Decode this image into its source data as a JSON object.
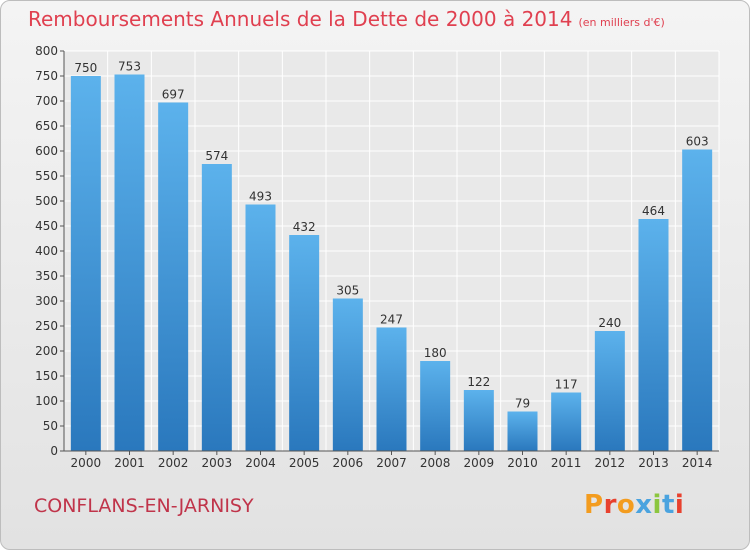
{
  "chart_data": {
    "type": "bar",
    "title": "Remboursements Annuels de la Dette de 2000 à 2014",
    "subtitle": "(en milliers d'€)",
    "categories": [
      "2000",
      "2001",
      "2002",
      "2003",
      "2004",
      "2005",
      "2006",
      "2007",
      "2008",
      "2009",
      "2010",
      "2011",
      "2012",
      "2013",
      "2014"
    ],
    "values": [
      750,
      753,
      697,
      574,
      493,
      432,
      305,
      247,
      180,
      122,
      79,
      117,
      240,
      464,
      603
    ],
    "ylim": [
      0,
      800
    ],
    "yticks": [
      0,
      50,
      100,
      150,
      200,
      250,
      300,
      350,
      400,
      450,
      500,
      550,
      600,
      650,
      700,
      750,
      800
    ],
    "grid": true,
    "data_labels": true,
    "bar_color": "#3a8fd6"
  },
  "footer": {
    "commune": "CONFLANS-EN-JARNISY",
    "brand": "Proxiti",
    "brand_colors": [
      "#f39c1f",
      "#e8412e",
      "#f39c1f",
      "#4aa3df",
      "#8cc63f",
      "#4aa3df",
      "#e8412e"
    ]
  }
}
